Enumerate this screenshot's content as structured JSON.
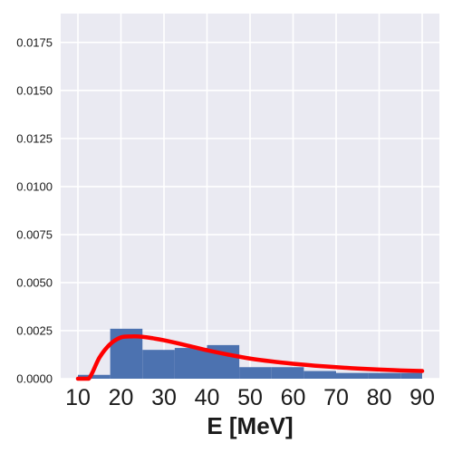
{
  "chart_data": {
    "type": "histogram",
    "xlabel": "E [MeV]",
    "ylabel": "",
    "xlim": [
      6,
      94
    ],
    "ylim": [
      0,
      0.019
    ],
    "grid": true,
    "x_ticks": [
      10,
      20,
      30,
      40,
      50,
      60,
      70,
      80,
      90
    ],
    "x_tick_labels": [
      "10",
      "20",
      "30",
      "40",
      "50",
      "60",
      "70",
      "80",
      "90"
    ],
    "y_ticks": [
      0,
      0.0025,
      0.005,
      0.0075,
      0.01,
      0.0125,
      0.015,
      0.0175
    ],
    "y_tick_labels": [
      "0.0000",
      "0.0025",
      "0.0050",
      "0.0075",
      "0.0100",
      "0.0125",
      "0.0150",
      "0.0175"
    ],
    "histogram": {
      "color": "#4c72b0",
      "bins": [
        {
          "x0": 10,
          "x1": 17.5,
          "value": 0.0002
        },
        {
          "x0": 17.5,
          "x1": 25,
          "value": 0.0026
        },
        {
          "x0": 25,
          "x1": 32.5,
          "value": 0.0015
        },
        {
          "x0": 32.5,
          "x1": 40,
          "value": 0.0016
        },
        {
          "x0": 40,
          "x1": 47.5,
          "value": 0.00175
        },
        {
          "x0": 47.5,
          "x1": 55,
          "value": 0.0006
        },
        {
          "x0": 55,
          "x1": 62.5,
          "value": 0.0006
        },
        {
          "x0": 62.5,
          "x1": 70,
          "value": 0.0004
        },
        {
          "x0": 70,
          "x1": 77.5,
          "value": 0.0003
        },
        {
          "x0": 77.5,
          "x1": 85,
          "value": 0.0003
        },
        {
          "x0": 85,
          "x1": 90,
          "value": 0.0003
        }
      ]
    },
    "fit_curve": {
      "color": "#ff0000",
      "x": [
        10,
        12.5,
        15,
        17.5,
        20,
        22.5,
        25,
        27.5,
        30,
        35,
        40,
        45,
        50,
        55,
        60,
        65,
        70,
        75,
        80,
        85,
        90
      ],
      "y": [
        0,
        0,
        0.0011,
        0.0018,
        0.00215,
        0.0022,
        0.00218,
        0.0021,
        0.002,
        0.00175,
        0.00148,
        0.00125,
        0.00105,
        0.0009,
        0.00078,
        0.00068,
        0.0006,
        0.00053,
        0.00048,
        0.00043,
        0.0004
      ]
    }
  }
}
